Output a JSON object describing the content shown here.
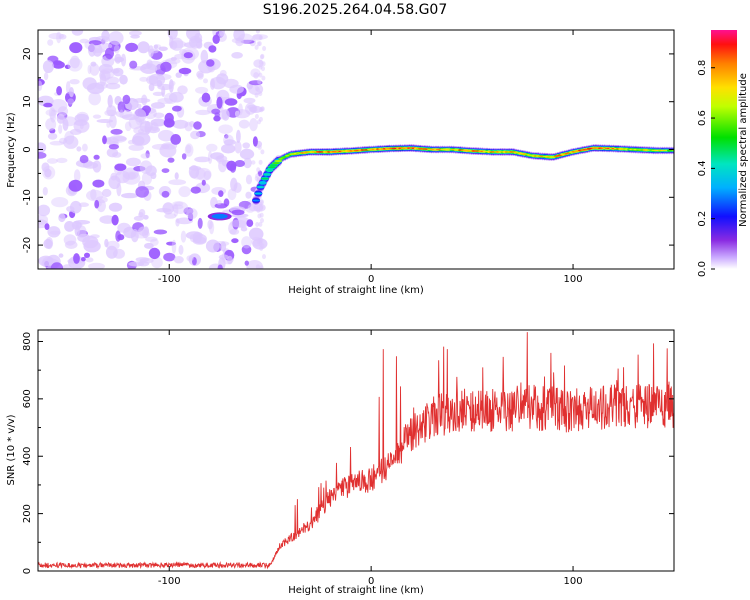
{
  "title": "S196.2025.264.04.58.G07",
  "colors": {
    "snr_line": "#e03030",
    "spectrum_noise": "#9b59ff",
    "spectrum_noise_light": "#ddc8ff"
  },
  "chart_data": [
    {
      "type": "heatmap",
      "title": "S196.2025.264.04.58.G07",
      "xlabel": "Height of straight line (km)",
      "ylabel": "Frequency (Hz)",
      "xlim": [
        -165,
        150
      ],
      "ylim": [
        -25,
        25
      ],
      "xticks": [
        -100,
        0,
        100
      ],
      "yticks": [
        -20,
        -10,
        0,
        10,
        20
      ],
      "colorbar": {
        "label": "Normalized spectral amplitude",
        "range": [
          0,
          0.95
        ],
        "ticks": [
          0.0,
          0.2,
          0.4,
          0.6,
          0.8
        ]
      },
      "noise_region_x": [
        -165,
        -55
      ],
      "ridge": {
        "x": [
          -80,
          -70,
          -58,
          -55,
          -50,
          -45,
          -40,
          -30,
          -20,
          -10,
          0,
          10,
          20,
          30,
          40,
          50,
          60,
          70,
          80,
          90,
          100,
          110,
          120,
          130,
          140,
          150
        ],
        "y": [
          -14,
          -14,
          -12,
          -8,
          -4,
          -2,
          -1,
          -0.5,
          -0.5,
          -0.3,
          0,
          0.2,
          0.3,
          0,
          0,
          -0.3,
          -0.5,
          -0.5,
          -1.3,
          -1.6,
          -0.5,
          0.3,
          0.2,
          0,
          -0.2,
          -0.2
        ],
        "amplitude": [
          0.3,
          0.25,
          0.25,
          0.4,
          0.5,
          0.6,
          0.7,
          0.8,
          0.9,
          0.85,
          0.8,
          0.9,
          0.85,
          0.8,
          0.75,
          0.85,
          0.8,
          0.8,
          0.75,
          0.8,
          0.8,
          0.85,
          0.8,
          0.7,
          0.7,
          0.6
        ]
      }
    },
    {
      "type": "line",
      "xlabel": "Height of straight line (km)",
      "ylabel": "SNR (10 * v/v)",
      "xlim": [
        -165,
        150
      ],
      "ylim": [
        0,
        840
      ],
      "xticks": [
        -100,
        0,
        100
      ],
      "yticks": [
        0,
        200,
        400,
        600,
        800
      ],
      "series": [
        {
          "name": "SNR",
          "x_range": [
            -165,
            150
          ],
          "envelope": {
            "x": [
              -165,
              -50,
              -45,
              -30,
              -20,
              -10,
              0,
              10,
              20,
              30,
              40,
              60,
              80,
              100,
              120,
              150
            ],
            "y": [
              20,
              20,
              90,
              160,
              260,
              300,
              320,
              380,
              480,
              540,
              550,
              560,
              570,
              560,
              570,
              580
            ]
          },
          "peaks_max": 840
        }
      ]
    }
  ]
}
